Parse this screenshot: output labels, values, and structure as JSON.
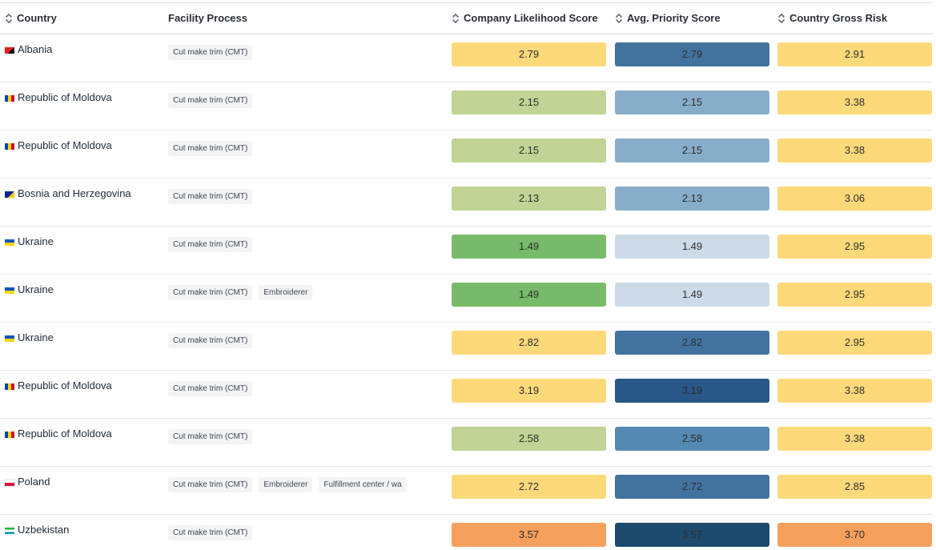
{
  "columns": {
    "country": "Country",
    "facility_process": "Facility Process",
    "likelihood": "Company Likelihood Score",
    "priority": "Avg. Priority Score",
    "gross_risk": "Country Gross Risk"
  },
  "rows": [
    {
      "country": "Albania",
      "flag": [
        "#e41e20",
        "#000000"
      ],
      "processes": [
        "Cut make trim (CMT)"
      ],
      "likelihood": "2.79",
      "likelihood_color": "#fdd97a",
      "priority": "2.79",
      "priority_color": "#43729f",
      "gross_risk": "2.91",
      "gross_risk_color": "#fdd97a"
    },
    {
      "country": "Republic of Moldova",
      "flag": [
        "#0046ae",
        "#ffd200",
        "#cc092f"
      ],
      "processes": [
        "Cut make trim (CMT)"
      ],
      "likelihood": "2.15",
      "likelihood_color": "#bfd495",
      "priority": "2.15",
      "priority_color": "#87aec9",
      "gross_risk": "3.38",
      "gross_risk_color": "#fdd97a"
    },
    {
      "country": "Republic of Moldova",
      "flag": [
        "#0046ae",
        "#ffd200",
        "#cc092f"
      ],
      "processes": [
        "Cut make trim (CMT)"
      ],
      "likelihood": "2.15",
      "likelihood_color": "#bfd495",
      "priority": "2.15",
      "priority_color": "#87aec9",
      "gross_risk": "3.38",
      "gross_risk_color": "#fdd97a"
    },
    {
      "country": "Bosnia and Herzegovina",
      "flag": [
        "#002395",
        "#fecb00"
      ],
      "processes": [
        "Cut make trim (CMT)"
      ],
      "likelihood": "2.13",
      "likelihood_color": "#bfd495",
      "priority": "2.13",
      "priority_color": "#87aec9",
      "gross_risk": "3.06",
      "gross_risk_color": "#fdd97a"
    },
    {
      "country": "Ukraine",
      "flag": [
        "#0057b7",
        "#ffd700"
      ],
      "processes": [
        "Cut make trim (CMT)"
      ],
      "likelihood": "1.49",
      "likelihood_color": "#77bb6a",
      "priority": "1.49",
      "priority_color": "#cddbe8",
      "gross_risk": "2.95",
      "gross_risk_color": "#fdd97a"
    },
    {
      "country": "Ukraine",
      "flag": [
        "#0057b7",
        "#ffd700"
      ],
      "processes": [
        "Cut make trim (CMT)",
        "Embroiderer"
      ],
      "likelihood": "1.49",
      "likelihood_color": "#77bb6a",
      "priority": "1.49",
      "priority_color": "#cddbe8",
      "gross_risk": "2.95",
      "gross_risk_color": "#fdd97a"
    },
    {
      "country": "Ukraine",
      "flag": [
        "#0057b7",
        "#ffd700"
      ],
      "processes": [
        "Cut make trim (CMT)"
      ],
      "likelihood": "2.82",
      "likelihood_color": "#fdd97a",
      "priority": "2.82",
      "priority_color": "#43729f",
      "gross_risk": "2.95",
      "gross_risk_color": "#fdd97a"
    },
    {
      "country": "Republic of Moldova",
      "flag": [
        "#0046ae",
        "#ffd200",
        "#cc092f"
      ],
      "processes": [
        "Cut make trim (CMT)"
      ],
      "likelihood": "3.19",
      "likelihood_color": "#fdd97a",
      "priority": "3.19",
      "priority_color": "#295787",
      "gross_risk": "3.38",
      "gross_risk_color": "#fdd97a"
    },
    {
      "country": "Republic of Moldova",
      "flag": [
        "#0046ae",
        "#ffd200",
        "#cc092f"
      ],
      "processes": [
        "Cut make trim (CMT)"
      ],
      "likelihood": "2.58",
      "likelihood_color": "#bfd495",
      "priority": "2.58",
      "priority_color": "#5389b3",
      "gross_risk": "3.38",
      "gross_risk_color": "#fdd97a"
    },
    {
      "country": "Poland",
      "flag": [
        "#ffffff",
        "#dc143c"
      ],
      "processes": [
        "Cut make trim (CMT)",
        "Embroiderer",
        "Fulfillment center / wa"
      ],
      "likelihood": "2.72",
      "likelihood_color": "#fdd97a",
      "priority": "2.72",
      "priority_color": "#43729f",
      "gross_risk": "2.85",
      "gross_risk_color": "#fdd97a"
    },
    {
      "country": "Uzbekistan",
      "flag": [
        "#1eb53a",
        "#ffffff",
        "#0099b5"
      ],
      "processes": [
        "Cut make trim (CMT)"
      ],
      "likelihood": "3.57",
      "likelihood_color": "#f6a05e",
      "priority": "3.57",
      "priority_color": "#1d4a6d",
      "gross_risk": "3.70",
      "gross_risk_color": "#f6a05e"
    }
  ],
  "colors": {
    "header_text": "#2b2f36",
    "border": "#e5e7eb",
    "chip_bg": "#f3f4f6"
  }
}
